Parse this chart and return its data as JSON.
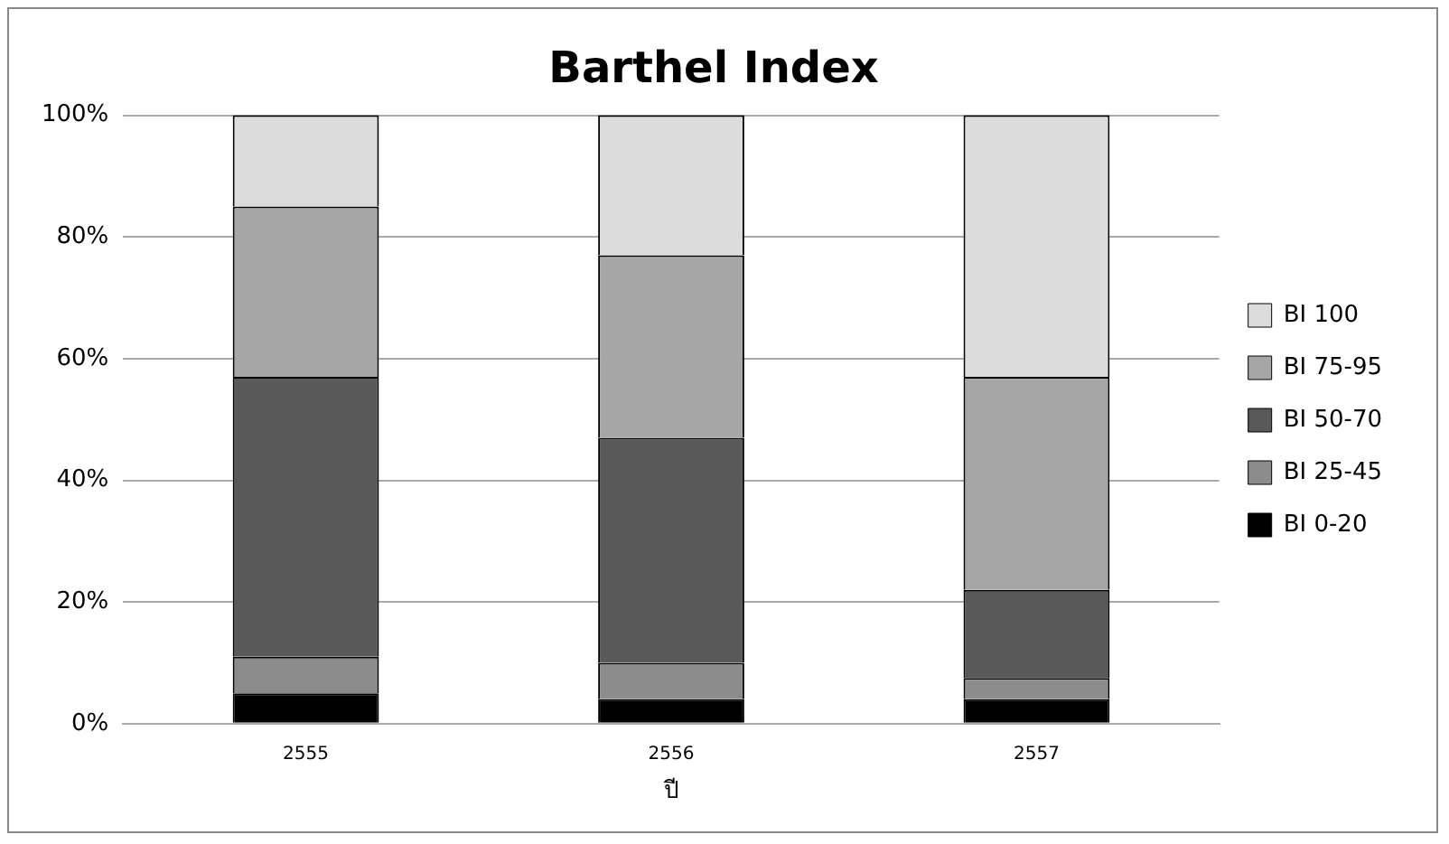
{
  "chart_data": {
    "type": "bar",
    "title": "Barthel Index",
    "xlabel": "ปี",
    "categories": [
      "2555",
      "2556",
      "2557"
    ],
    "stacked": true,
    "series": [
      {
        "name": "BI 0-20",
        "color": "#000000",
        "values": [
          5,
          4,
          4
        ]
      },
      {
        "name": "BI 25-45",
        "color": "#8c8c8c",
        "values": [
          6,
          6,
          3.5
        ]
      },
      {
        "name": "BI 50-70",
        "color": "#595959",
        "values": [
          46,
          37,
          14.5
        ]
      },
      {
        "name": "BI 75-95",
        "color": "#a6a6a6",
        "values": [
          28,
          30,
          35
        ]
      },
      {
        "name": "BI 100",
        "color": "#dcdcdc",
        "values": [
          15,
          23,
          43
        ]
      }
    ],
    "ylim": [
      0,
      100
    ],
    "yticks": [
      {
        "value": 0,
        "label": "0%"
      },
      {
        "value": 20,
        "label": "20%"
      },
      {
        "value": 40,
        "label": "40%"
      },
      {
        "value": 60,
        "label": "60%"
      },
      {
        "value": 80,
        "label": "80%"
      },
      {
        "value": 100,
        "label": "100%"
      }
    ],
    "grid": "y",
    "legend": "right"
  }
}
